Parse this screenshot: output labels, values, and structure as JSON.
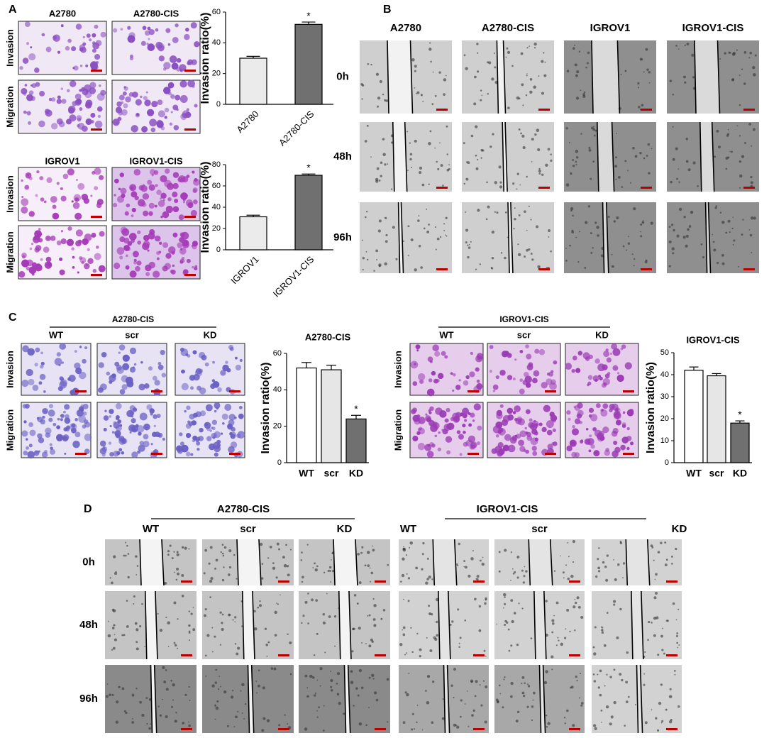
{
  "figure": {
    "panel_labels": [
      "A",
      "B",
      "C",
      "D"
    ],
    "A": {
      "top": {
        "columns": [
          "A2780",
          "A2780-CIS"
        ],
        "rows": [
          "Invasion",
          "Migration"
        ]
      },
      "bottom": {
        "columns": [
          "IGROV1",
          "IGROV1-CIS"
        ],
        "rows": [
          "Invasion",
          "Migration"
        ]
      }
    },
    "B": {
      "columns": [
        "A2780",
        "A2780-CIS",
        "IGROV1",
        "IGROV1-CIS"
      ],
      "times": [
        "0h",
        "48h",
        "96h"
      ]
    },
    "C": {
      "left": {
        "group": "A2780-CIS",
        "columns": [
          "WT",
          "scr",
          "KD"
        ],
        "rows": [
          "Invasion",
          "Migration"
        ]
      },
      "right": {
        "group": "IGROV1-CIS",
        "columns": [
          "WT",
          "scr",
          "KD"
        ],
        "rows": [
          "Invasion",
          "Migration"
        ]
      }
    },
    "D": {
      "left": {
        "group": "A2780-CIS",
        "columns": [
          "WT",
          "scr",
          "KD"
        ]
      },
      "right": {
        "group": "IGROV1-CIS",
        "columns": [
          "WT",
          "scr",
          "KD"
        ]
      },
      "times": [
        "0h",
        "48h",
        "96h"
      ]
    }
  },
  "chart_data": [
    {
      "type": "bar",
      "y_label": "Invasion ratio(%)",
      "categories": [
        "A2780",
        "A2780-CIS"
      ],
      "values": [
        30,
        52
      ],
      "errors": [
        1.2,
        1.5
      ],
      "colors": [
        "#ebebeb",
        "#707070"
      ],
      "ylim": [
        0,
        60
      ],
      "yticks": [
        0,
        20,
        40,
        60
      ],
      "annotations": [
        {
          "text": "*",
          "x": "A2780-CIS"
        }
      ]
    },
    {
      "type": "bar",
      "y_label": "Invasion ratio(%)",
      "categories": [
        "IGROV1",
        "IGROV1-CIS"
      ],
      "values": [
        31,
        70
      ],
      "errors": [
        1.5,
        1.2
      ],
      "colors": [
        "#ebebeb",
        "#707070"
      ],
      "ylim": [
        0,
        80
      ],
      "yticks": [
        0,
        20,
        40,
        60,
        80
      ],
      "annotations": [
        {
          "text": "*",
          "x": "IGROV1-CIS"
        }
      ]
    },
    {
      "type": "bar",
      "title": "A2780-CIS",
      "y_label": "Invasion ratio(%)",
      "categories": [
        "WT",
        "scr",
        "KD"
      ],
      "values": [
        52,
        51,
        24
      ],
      "errors": [
        3,
        2.5,
        2
      ],
      "colors": [
        "#ffffff",
        "#e6e6e6",
        "#707070"
      ],
      "ylim": [
        0,
        60
      ],
      "yticks": [
        0,
        20,
        40,
        60
      ],
      "annotations": [
        {
          "text": "*",
          "x": "KD"
        }
      ]
    },
    {
      "type": "bar",
      "title": "IGROV1-CIS",
      "y_label": "Invasion ratio(%)",
      "categories": [
        "WT",
        "scr",
        "KD"
      ],
      "values": [
        42,
        39.5,
        18
      ],
      "errors": [
        1.5,
        1,
        1
      ],
      "colors": [
        "#ffffff",
        "#e6e6e6",
        "#707070"
      ],
      "ylim": [
        0,
        50
      ],
      "yticks": [
        0,
        10,
        20,
        30,
        40,
        50
      ],
      "annotations": [
        {
          "text": "*",
          "x": "KD"
        }
      ]
    }
  ]
}
